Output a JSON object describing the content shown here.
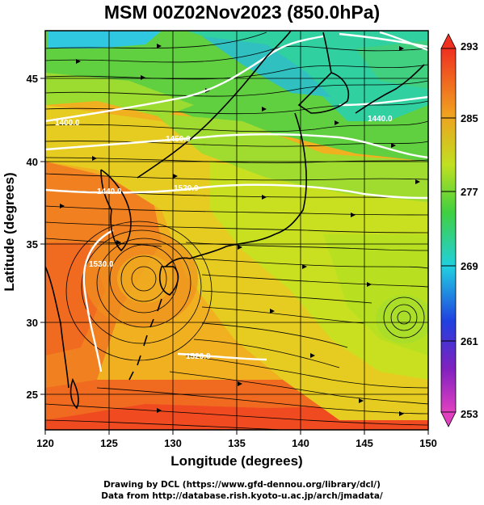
{
  "title": "MSM 00Z02Nov2023 (850.0hPa)",
  "map": {
    "xlabel": "Longitude (degrees)",
    "ylabel": "Latitude  (degrees)",
    "x_ticks": [
      "120",
      "125",
      "130",
      "135",
      "140",
      "145",
      "150"
    ],
    "y_ticks": [
      "25",
      "30",
      "35",
      "40",
      "45"
    ],
    "lon_range": [
      120,
      150
    ],
    "lat_range": [
      22.4,
      47.6
    ],
    "grid": true,
    "field": "temperature (K)",
    "colormap_colors": [
      "#e040c0",
      "#8020c0",
      "#2040e0",
      "#20d0e0",
      "#40d040",
      "#c0e020",
      "#f0a020",
      "#f03020"
    ],
    "contour_color": "#ffffff",
    "coastline_color": "#000000"
  },
  "contour_labels": [
    "1400.0",
    "1440.0",
    "1450.0",
    "1520.0",
    "1440.0",
    "1530.0",
    "1520.0"
  ],
  "colorbar": {
    "ticks": [
      "293",
      "285",
      "277",
      "269",
      "261",
      "253"
    ],
    "min": 253,
    "max": 293
  },
  "footer": {
    "line1": "Drawing by DCL (https://www.gfd-dennou.org/library/dcl/)",
    "line2": "Data from http://database.rish.kyoto-u.ac.jp/arch/jmadata/"
  }
}
